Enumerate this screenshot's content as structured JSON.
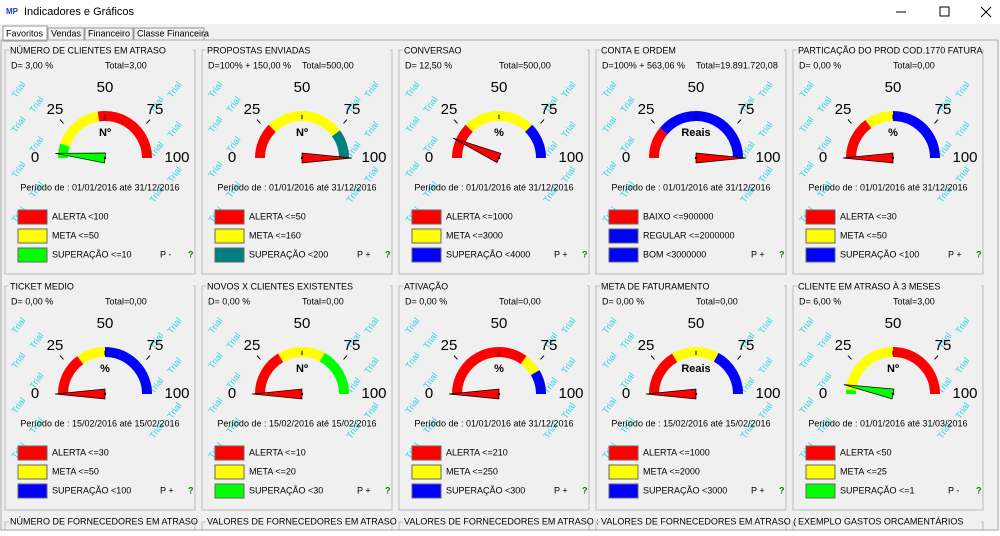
{
  "window": {
    "title": "Indicadores e Gráficos",
    "tabs": [
      "Favoritos",
      "Vendas",
      "Financeiro",
      "Classe Financeira"
    ]
  },
  "gauge_scale": [
    "0",
    "25",
    "50",
    "75",
    "100"
  ],
  "watermark": "Trial",
  "help": "?",
  "panels": [
    {
      "title": "NÚMERO DE CLIENTES EM ATRASO",
      "d": "D= 3,00 %",
      "total": "Total=3,00",
      "unit": "Nº",
      "period": "Período de : 01/01/2016 até 31/12/2016",
      "legend": [
        {
          "label": "ALERTA <100",
          "color": "#ff0000"
        },
        {
          "label": "META <=50",
          "color": "#ffff00"
        },
        {
          "label": "SUPERAÇÃO <=10",
          "color": "#00ff00"
        }
      ],
      "p": "P -"
    },
    {
      "title": "PROPOSTAS ENVIADAS",
      "d": "D=100% + 150,00 %",
      "total": "Total=500,00",
      "unit": "Nº",
      "period": "Período de : 01/01/2016 até 31/12/2016",
      "legend": [
        {
          "label": "ALERTA <=50",
          "color": "#ff0000"
        },
        {
          "label": "META <=160",
          "color": "#ffff00"
        },
        {
          "label": "SUPERAÇÃO <200",
          "color": "#008080"
        }
      ],
      "p": "P +"
    },
    {
      "title": "CONVERSAO",
      "d": "D= 12,50 %",
      "total": "Total=500,00",
      "unit": "%",
      "period": "Período de : 01/01/2016 até 31/12/2016",
      "legend": [
        {
          "label": "ALERTA <=1000",
          "color": "#ff0000"
        },
        {
          "label": "META <=3000",
          "color": "#ffff00"
        },
        {
          "label": "SUPERAÇÃO <4000",
          "color": "#0000ff"
        }
      ],
      "p": "P +"
    },
    {
      "title": "CONTA E ORDEM",
      "d": "D=100% + 563,06 %",
      "total": "Total=19.891.720,08",
      "unit": "Reais",
      "period": "Período de : 01/01/2016 até 31/12/2016",
      "legend": [
        {
          "label": "BAIXO <=900000",
          "color": "#ff0000"
        },
        {
          "label": "REGULAR <=2000000",
          "color": "#0000ff"
        },
        {
          "label": "BOM <3000000",
          "color": "#0000ff"
        }
      ],
      "p": "P +"
    },
    {
      "title": "PARTICAÇÃO DO PROD COD.1770  FATURA",
      "d": "D= 0,00 %",
      "total": "Total=0,00",
      "unit": "%",
      "period": "Período de : 01/01/2016 até 31/12/2016",
      "legend": [
        {
          "label": "ALERTA <=30",
          "color": "#ff0000"
        },
        {
          "label": "META <=50",
          "color": "#ffff00"
        },
        {
          "label": "SUPERAÇÃO <100",
          "color": "#0000ff"
        }
      ],
      "p": "P +"
    },
    {
      "title": "TICKET MEDIO",
      "d": "D= 0,00 %",
      "total": "Total=0,00",
      "unit": "%",
      "period": "Período de : 15/02/2016 até 15/02/2016",
      "legend": [
        {
          "label": "ALERTA <=30",
          "color": "#ff0000"
        },
        {
          "label": "META <=50",
          "color": "#ffff00"
        },
        {
          "label": "SUPERAÇÃO <100",
          "color": "#0000ff"
        }
      ],
      "p": "P +"
    },
    {
      "title": "NOVOS X CLIENTES EXISTENTES",
      "d": "D= 0,00 %",
      "total": "Total=0,00",
      "unit": "Nº",
      "period": "Período de : 15/02/2016 até 15/02/2016",
      "legend": [
        {
          "label": "ALERTA <=10",
          "color": "#ff0000"
        },
        {
          "label": "META <=20",
          "color": "#ffff00"
        },
        {
          "label": "SUPERAÇÃO <30",
          "color": "#00ff00"
        }
      ],
      "p": "P +"
    },
    {
      "title": "ATIVAÇÃO",
      "d": "D= 0,00 %",
      "total": "Total=0,00",
      "unit": "%",
      "period": "Período de : 01/01/2016 até 31/12/2016",
      "legend": [
        {
          "label": "ALERTA <=210",
          "color": "#ff0000"
        },
        {
          "label": "META <=250",
          "color": "#ffff00"
        },
        {
          "label": "SUPERAÇÃO <300",
          "color": "#0000ff"
        }
      ],
      "p": "P +"
    },
    {
      "title": "META DE FATURAMENTO",
      "d": "D= 0,00 %",
      "total": "Total=0,00",
      "unit": "Reais",
      "period": "Período de : 15/02/2016 até 15/02/2016",
      "legend": [
        {
          "label": "ALERTA <=1000",
          "color": "#ff0000"
        },
        {
          "label": "META <=2000",
          "color": "#ffff00"
        },
        {
          "label": "SUPERAÇÃO <3000",
          "color": "#0000ff"
        }
      ],
      "p": "P +"
    },
    {
      "title": "CLIENTE EM ATRASO À 3 MESES",
      "d": "D= 6,00 %",
      "total": "Total=3,00",
      "unit": "Nº",
      "period": "Período de : 01/01/2016 até 31/03/2016",
      "legend": [
        {
          "label": "ALERTA <50",
          "color": "#ff0000"
        },
        {
          "label": "META <=25",
          "color": "#ffff00"
        },
        {
          "label": "SUPERAÇÃO <=1",
          "color": "#00ff00"
        }
      ],
      "p": "P -"
    }
  ],
  "bottom_titles": [
    "NÚMERO DE FORNECEDORES EM ATRASO",
    "VALORES DE FORNECEDORES EM ATRASO",
    "VALORES DE FORNECEDORES EM ATRASO :",
    "VALORES DE FORNECEDORES EM ATRASO (",
    "EXEMPLO GASTOS ORCAMENTÁRIOS"
  ]
}
